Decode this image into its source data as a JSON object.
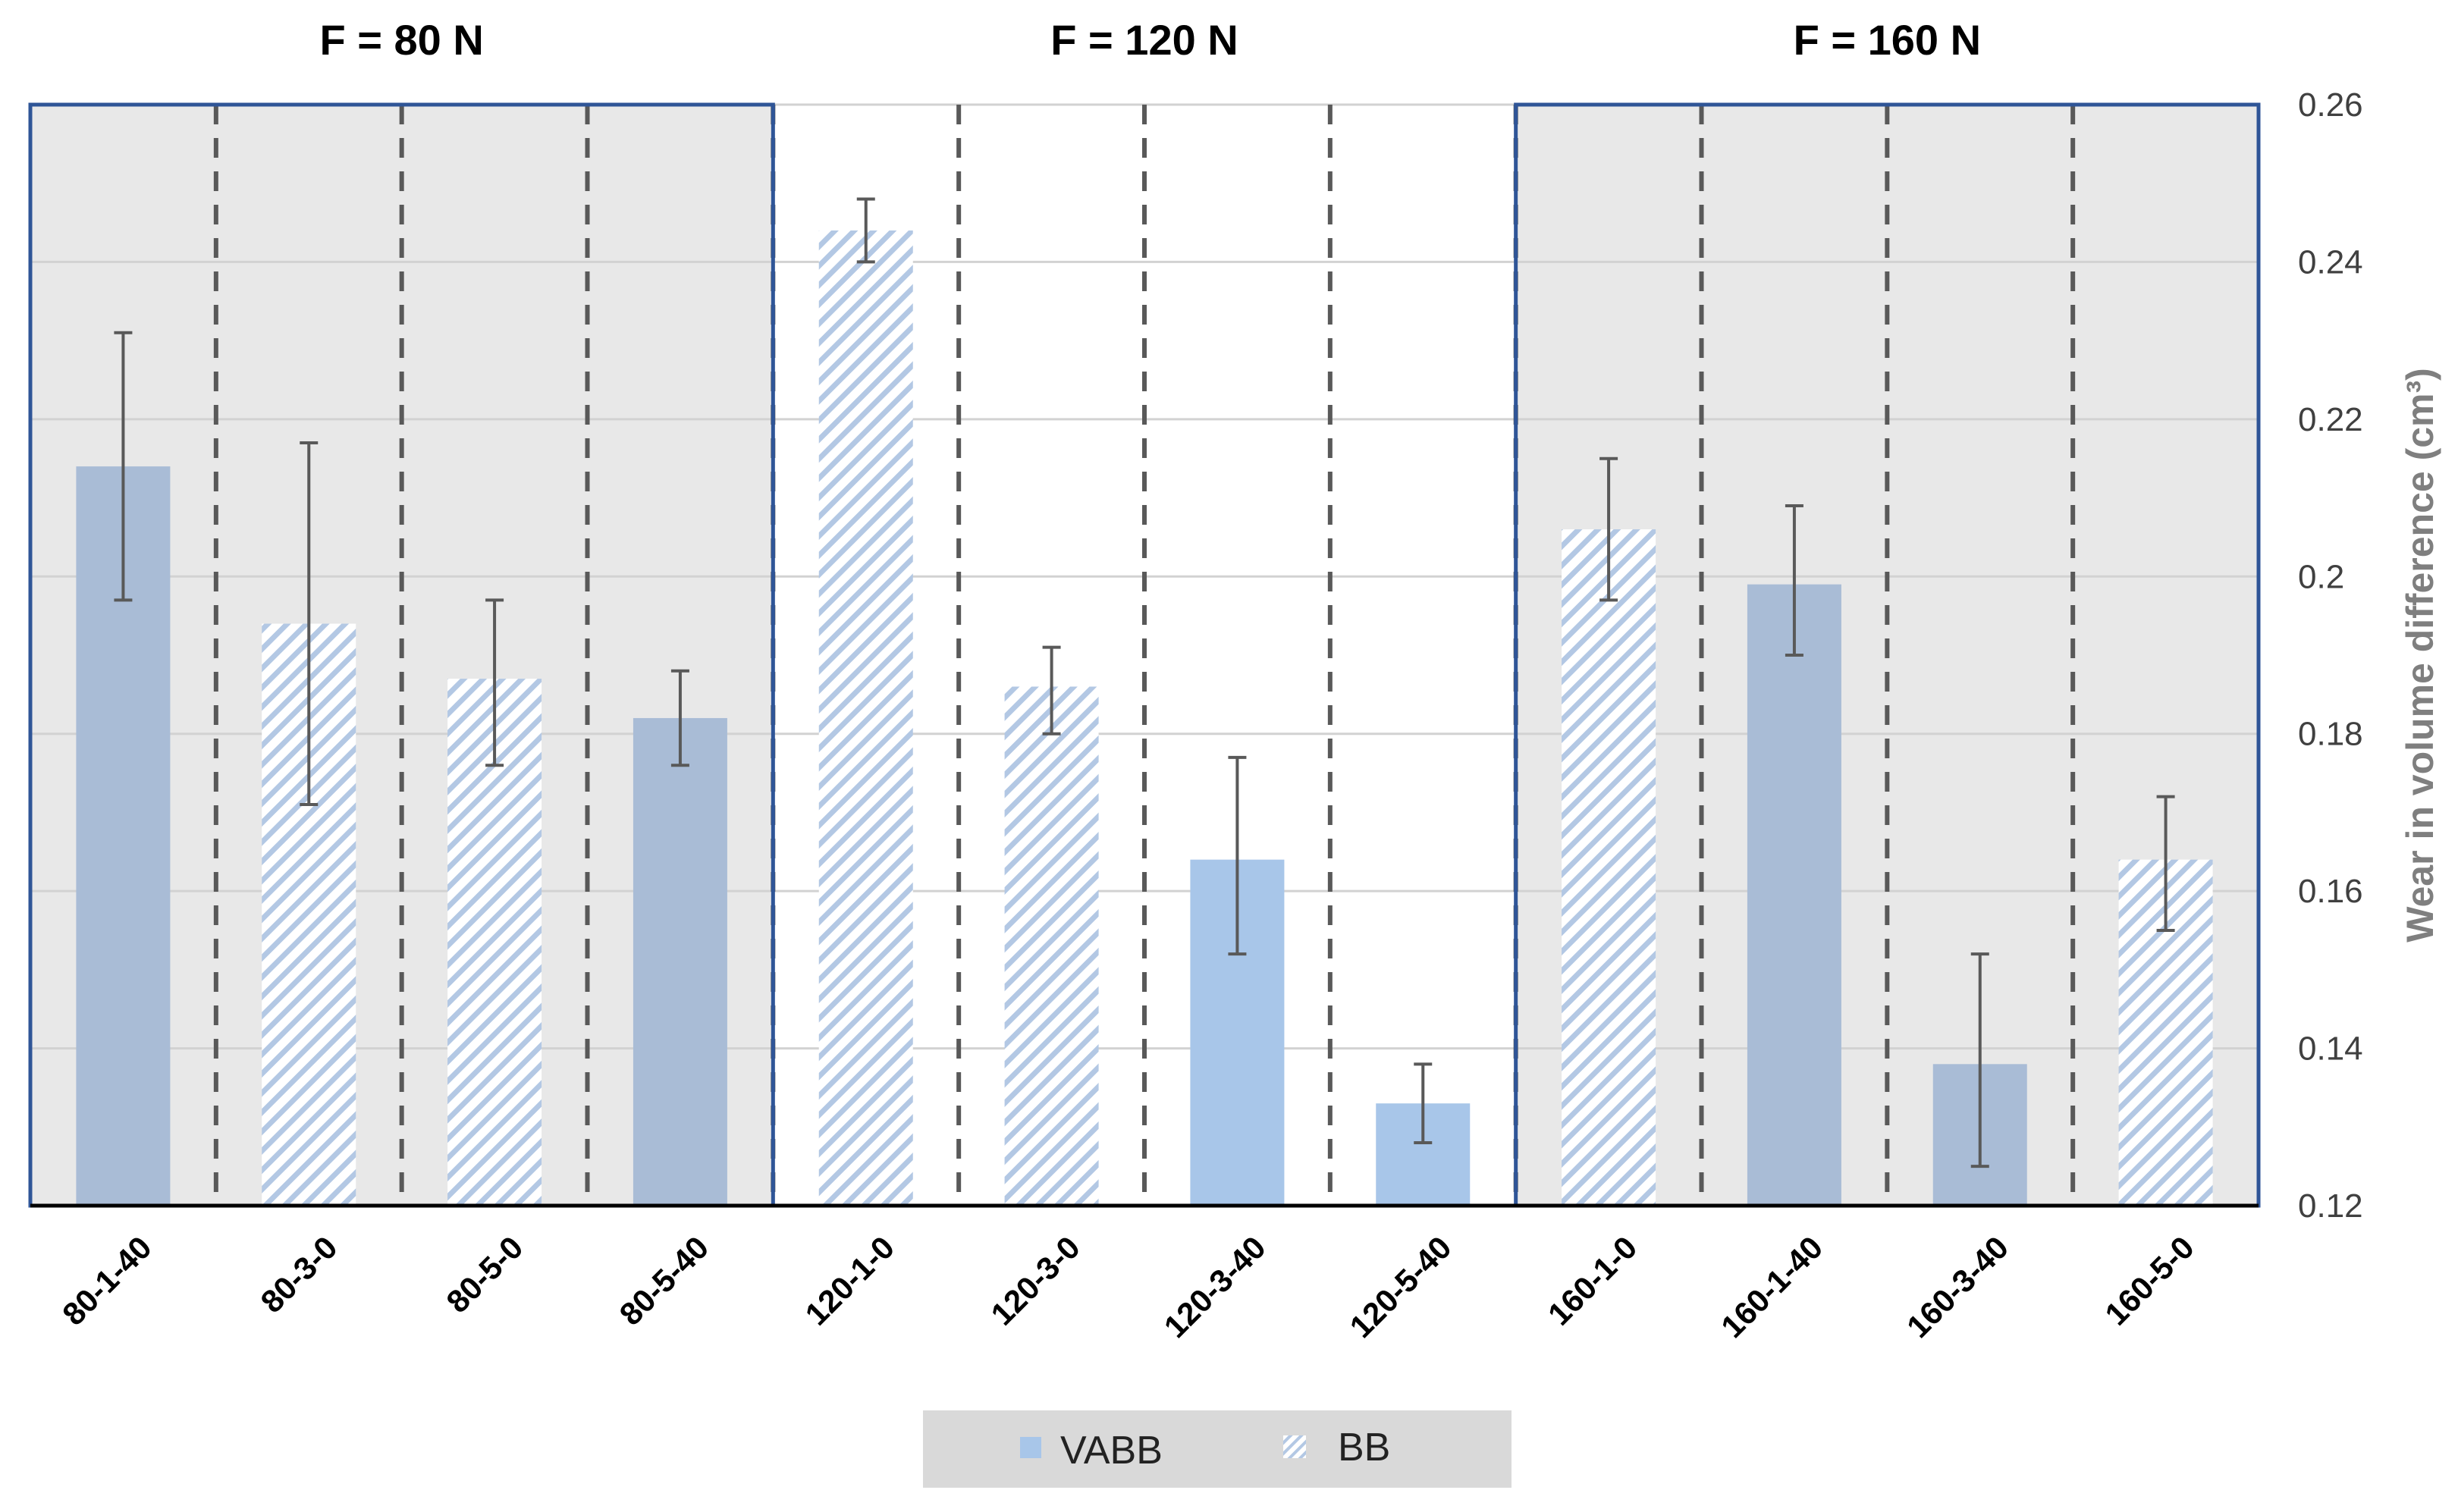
{
  "chart_data": {
    "type": "bar",
    "ylabel": "Wear in volume difference (cm³)",
    "ylim": [
      0.12,
      0.26
    ],
    "yticks": [
      "0.12",
      "0.14",
      "0.16",
      "0.18",
      "0.2",
      "0.22",
      "0.24",
      "0.26"
    ],
    "yaxis_position": "right",
    "grid": true,
    "legend": {
      "position": "bottom",
      "entries": [
        {
          "name": "VABB",
          "style": "solid"
        },
        {
          "name": "BB",
          "style": "hatched"
        }
      ]
    },
    "groups": [
      {
        "title": "F = 80 N",
        "shaded": true,
        "color": "#a9bcd6",
        "bars": [
          {
            "label": "80-1-40",
            "series": "VABB",
            "value": 0.214,
            "err_low": 0.197,
            "err_high": 0.231
          },
          {
            "label": "80-3-0",
            "series": "BB",
            "value": 0.194,
            "err_low": 0.171,
            "err_high": 0.217
          },
          {
            "label": "80-5-0",
            "series": "BB",
            "value": 0.187,
            "err_low": 0.176,
            "err_high": 0.197
          },
          {
            "label": "80-5-40",
            "series": "VABB",
            "value": 0.182,
            "err_low": 0.176,
            "err_high": 0.188
          }
        ]
      },
      {
        "title": "F = 120 N",
        "shaded": false,
        "color": "#a8c6e9",
        "bars": [
          {
            "label": "120-1-0",
            "series": "BB",
            "value": 0.244,
            "err_low": 0.24,
            "err_high": 0.248
          },
          {
            "label": "120-3-0",
            "series": "BB",
            "value": 0.186,
            "err_low": 0.18,
            "err_high": 0.191
          },
          {
            "label": "120-3-40",
            "series": "VABB",
            "value": 0.164,
            "err_low": 0.152,
            "err_high": 0.177
          },
          {
            "label": "120-5-40",
            "series": "VABB",
            "value": 0.133,
            "err_low": 0.128,
            "err_high": 0.138
          }
        ]
      },
      {
        "title": "F = 160 N",
        "shaded": true,
        "color": "#a9bcd6",
        "bars": [
          {
            "label": "160-1-0",
            "series": "BB",
            "value": 0.206,
            "err_low": 0.197,
            "err_high": 0.215
          },
          {
            "label": "160-1-40",
            "series": "VABB",
            "value": 0.199,
            "err_low": 0.19,
            "err_high": 0.209
          },
          {
            "label": "160-3-40",
            "series": "VABB",
            "value": 0.138,
            "err_low": 0.125,
            "err_high": 0.152
          },
          {
            "label": "160-5-0",
            "series": "BB",
            "value": 0.164,
            "err_low": 0.155,
            "err_high": 0.172
          }
        ]
      }
    ]
  }
}
